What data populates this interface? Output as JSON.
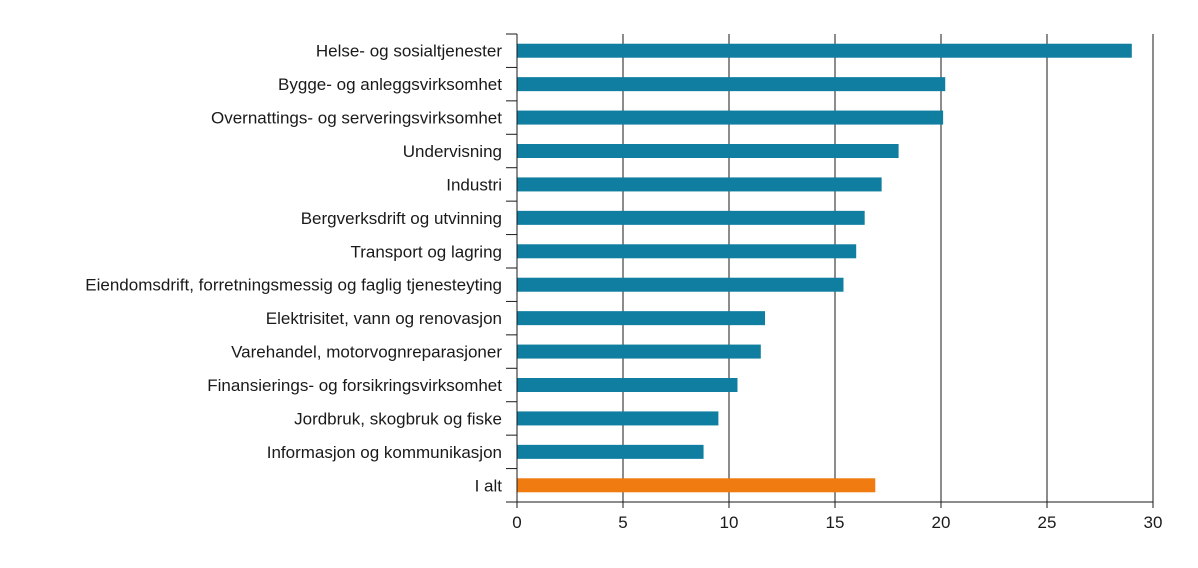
{
  "chart_data": {
    "type": "bar",
    "orientation": "horizontal",
    "categories": [
      "Helse- og sosialtjenester",
      "Bygge- og anleggsvirksomhet",
      "Overnattings- og serveringsvirksomhet",
      "Undervisning",
      "Industri",
      "Bergverksdrift og utvinning",
      "Transport og lagring",
      "Eiendomsdrift, forretningsmessig og faglig tjenesteyting",
      "Elektrisitet, vann og renovasjon",
      "Varehandel, motorvognreparasjoner",
      "Finansierings- og forsikringsvirksomhet",
      "Jordbruk, skogbruk og fiske",
      "Informasjon og kommunikasjon",
      "I alt"
    ],
    "values": [
      29.0,
      20.2,
      20.1,
      18.0,
      17.2,
      16.4,
      16.0,
      15.4,
      11.7,
      11.5,
      10.4,
      9.5,
      8.8,
      16.9
    ],
    "bar_colors": [
      "#0f7ea0",
      "#0f7ea0",
      "#0f7ea0",
      "#0f7ea0",
      "#0f7ea0",
      "#0f7ea0",
      "#0f7ea0",
      "#0f7ea0",
      "#0f7ea0",
      "#0f7ea0",
      "#0f7ea0",
      "#0f7ea0",
      "#0f7ea0",
      "#f07b10"
    ],
    "xlim": [
      0,
      30
    ],
    "xticks": [
      0,
      5,
      10,
      15,
      20,
      25,
      30
    ],
    "title": "",
    "xlabel": "",
    "ylabel": "",
    "grid": "vertical",
    "legend": "none",
    "colors": {
      "primary": "#0f7ea0",
      "highlight": "#f07b10",
      "grid": "#1a1a1a",
      "text": "#1a1a1a"
    }
  }
}
